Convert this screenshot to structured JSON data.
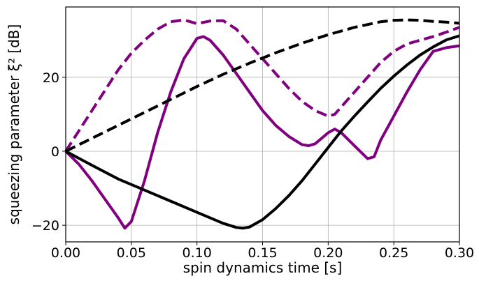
{
  "chart_data": {
    "type": "line",
    "xlabel": "spin dynamics time [s]",
    "ylabel": "squeezing parameter ξ² [dB]",
    "xlim": [
      0.0,
      0.3
    ],
    "ylim": [
      -24.5,
      39
    ],
    "grid": true,
    "legend": false,
    "xticks": [
      0.0,
      0.05,
      0.1,
      0.15,
      0.2,
      0.25,
      0.3
    ],
    "xtick_labels": [
      "0.00",
      "0.05",
      "0.10",
      "0.15",
      "0.20",
      "0.25",
      "0.30"
    ],
    "yticks": [
      -20,
      0,
      20
    ],
    "ytick_labels": [
      "−20",
      "0",
      "20"
    ],
    "series": [
      {
        "color": "#800080",
        "style": "dashed",
        "x": [
          0.0,
          0.01,
          0.02,
          0.03,
          0.04,
          0.05,
          0.06,
          0.07,
          0.08,
          0.09,
          0.1,
          0.11,
          0.12,
          0.13,
          0.14,
          0.15,
          0.16,
          0.17,
          0.18,
          0.19,
          0.2,
          0.205,
          0.21,
          0.22,
          0.23,
          0.24,
          0.25,
          0.26,
          0.27,
          0.28,
          0.29,
          0.3
        ],
        "y": [
          0,
          5.5,
          11,
          16.5,
          22,
          26.5,
          30,
          33,
          35,
          35.5,
          34.5,
          35.2,
          35.3,
          33,
          29,
          25,
          21,
          17,
          13.5,
          11,
          9.5,
          10,
          12,
          16,
          20,
          24,
          27,
          29,
          30,
          31,
          32.2,
          33.5
        ]
      },
      {
        "color": "#800080",
        "style": "solid",
        "x": [
          0.0,
          0.01,
          0.02,
          0.03,
          0.04,
          0.045,
          0.05,
          0.06,
          0.07,
          0.08,
          0.09,
          0.1,
          0.105,
          0.11,
          0.12,
          0.13,
          0.14,
          0.15,
          0.16,
          0.17,
          0.18,
          0.185,
          0.19,
          0.2,
          0.205,
          0.21,
          0.22,
          0.23,
          0.235,
          0.24,
          0.25,
          0.26,
          0.27,
          0.28,
          0.29,
          0.3
        ],
        "y": [
          0,
          -3.5,
          -8,
          -13,
          -18,
          -20.8,
          -19,
          -8,
          5,
          16,
          25,
          30.5,
          31,
          30,
          26,
          21,
          16,
          11,
          7,
          4,
          1.8,
          1.5,
          2,
          5,
          6,
          5,
          1.5,
          -2,
          -1.5,
          3,
          9.5,
          16,
          22,
          27,
          28,
          28.5
        ]
      },
      {
        "color": "#000000",
        "style": "dashed",
        "x": [
          0.0,
          0.02,
          0.04,
          0.06,
          0.08,
          0.1,
          0.12,
          0.14,
          0.16,
          0.18,
          0.2,
          0.22,
          0.24,
          0.25,
          0.26,
          0.27,
          0.28,
          0.29,
          0.3
        ],
        "y": [
          0,
          3.5,
          7,
          10.5,
          14,
          17.5,
          20.8,
          23.8,
          26.6,
          29.2,
          31.5,
          33.5,
          35,
          35.4,
          35.5,
          35.4,
          35.1,
          34.9,
          34.6
        ]
      },
      {
        "color": "#000000",
        "style": "solid",
        "x": [
          0.0,
          0.02,
          0.04,
          0.06,
          0.08,
          0.1,
          0.12,
          0.13,
          0.135,
          0.14,
          0.15,
          0.16,
          0.17,
          0.18,
          0.19,
          0.2,
          0.21,
          0.22,
          0.23,
          0.24,
          0.25,
          0.26,
          0.27,
          0.28,
          0.29,
          0.3
        ],
        "y": [
          0,
          -3.8,
          -7.5,
          -10.5,
          -13.5,
          -16.5,
          -19.5,
          -20.6,
          -20.8,
          -20.5,
          -18.5,
          -15.5,
          -12,
          -8,
          -3.5,
          1,
          5.5,
          9.5,
          13.3,
          17,
          20.3,
          23.3,
          26,
          28.2,
          30.1,
          31.2
        ]
      }
    ]
  }
}
